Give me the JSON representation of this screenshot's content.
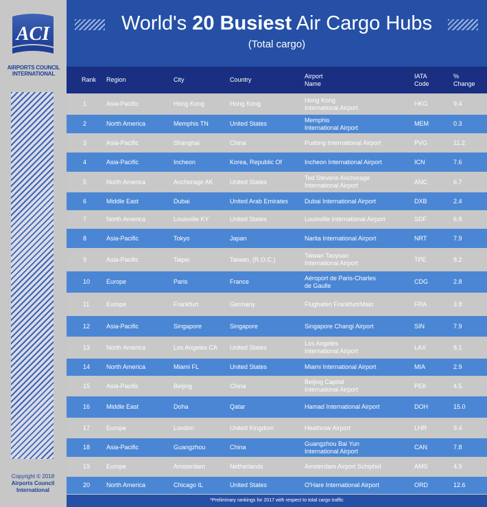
{
  "sidebar": {
    "logo_text": "ACI",
    "org_line1": "AIRPORTS COUNCIL",
    "org_line2": "INTERNATIONAL",
    "copyright_line1": "Copyright © 2018",
    "copyright_line2": "Airports Council",
    "copyright_line3": "International"
  },
  "header": {
    "title_pre": "World's ",
    "title_bold": "20 Busiest",
    "title_post": " Air Cargo Hubs",
    "subtitle": "(Total cargo)"
  },
  "columns": {
    "rank": "Rank",
    "region": "Region",
    "city": "City",
    "country": "Country",
    "airport_l1": "Airport",
    "airport_l2": "Name",
    "iata_l1": "IATA",
    "iata_l2": "Code",
    "change_l1": "%",
    "change_l2": "Change"
  },
  "rows": [
    {
      "rank": "1",
      "region": "Asia-Pacific",
      "city": "Hong Kong",
      "country": "Hong Kong",
      "airport_l1": "Hong Kong",
      "airport_l2": "International Airport",
      "iata": "HKG",
      "change": "9.4"
    },
    {
      "rank": "2",
      "region": "North America",
      "city": "Memphis TN",
      "country": "United States",
      "airport_l1": "Memphis",
      "airport_l2": "International Airport",
      "iata": "MEM",
      "change": "0.3"
    },
    {
      "rank": "3",
      "region": "Asia-Pacific",
      "city": "Shanghai",
      "country": "China",
      "airport_l1": "Pudong International Airport",
      "airport_l2": "",
      "iata": "PVG",
      "change": "11.2"
    },
    {
      "rank": "4",
      "region": "Asia-Pacific",
      "city": "Incheon",
      "country": "Korea, Republic Of",
      "airport_l1": "Incheon International Airport",
      "airport_l2": "",
      "iata": "ICN",
      "change": "7.6"
    },
    {
      "rank": "5",
      "region": "North America",
      "city": "Anchorage AK",
      "country": "United States",
      "airport_l1": "Ted Stevens Anchorage",
      "airport_l2": "International Airport",
      "iata": "ANC",
      "change": "6.7"
    },
    {
      "rank": "6",
      "region": "Middle East",
      "city": "Dubai",
      "country": "United Arab Emirates",
      "airport_l1": "Dubai International Airport",
      "airport_l2": "",
      "iata": "DXB",
      "change": "2.4"
    },
    {
      "rank": "7",
      "region": "North America",
      "city": "Louisville KY",
      "country": "United States",
      "airport_l1": "Louisville International Airport",
      "airport_l2": "",
      "iata": "SDF",
      "change": "6.8"
    },
    {
      "rank": "8",
      "region": "Asia-Pacific",
      "city": "Tokyo",
      "country": "Japan",
      "airport_l1": "Narita International Airport",
      "airport_l2": "",
      "iata": "NRT",
      "change": "7.9"
    },
    {
      "rank": "9",
      "region": "Asia-Pacific",
      "city": "Taipei",
      "country": "Taiwan, (R.O.C.)",
      "airport_l1": "Taiwan Taoyuan",
      "airport_l2": "International Airport",
      "iata": "TPE",
      "change": "8.2"
    },
    {
      "rank": "10",
      "region": "Europe",
      "city": "Paris",
      "country": "France",
      "airport_l1": "Aéroport de Paris-Charles",
      "airport_l2": "de Gaulle",
      "iata": "CDG",
      "change": "2.8"
    },
    {
      "rank": "11",
      "region": "Europe",
      "city": "Frankfurt",
      "country": "Germany",
      "airport_l1": "Flughafen Frankfurt/Main",
      "airport_l2": "",
      "iata": "FRA",
      "change": "3.8"
    },
    {
      "rank": "12",
      "region": "Asia-Pacific",
      "city": "Singapore",
      "country": "Singapore",
      "airport_l1": "Singapore Changi Airport",
      "airport_l2": "",
      "iata": "SIN",
      "change": "7.9"
    },
    {
      "rank": "13",
      "region": "North America",
      "city": "Los Angeles CA",
      "country": "United States",
      "airport_l1": "Los Angeles",
      "airport_l2": "International Airport",
      "iata": "LAX",
      "change": "8.1"
    },
    {
      "rank": "14",
      "region": "North America",
      "city": "Miami FL",
      "country": "United States",
      "airport_l1": "Miami International Airport",
      "airport_l2": "",
      "iata": "MIA",
      "change": "2.9"
    },
    {
      "rank": "15",
      "region": "Asia-Pacific",
      "city": "Beijing",
      "country": "China",
      "airport_l1": "Beijing Capital",
      "airport_l2": "International Airport",
      "iata": "PEK",
      "change": "4.5"
    },
    {
      "rank": "16",
      "region": "Middle East",
      "city": "Doha",
      "country": "Qatar",
      "airport_l1": "Hamad International Airport",
      "airport_l2": "",
      "iata": "DOH",
      "change": "15.0"
    },
    {
      "rank": "17",
      "region": "Europe",
      "city": "London",
      "country": "United Kingdom",
      "airport_l1": "Heathrow Airport",
      "airport_l2": "",
      "iata": "LHR",
      "change": "9.4"
    },
    {
      "rank": "18",
      "region": "Asia-Pacific",
      "city": "Guangzhou",
      "country": "China",
      "airport_l1": "Guangzhou Bai Yun",
      "airport_l2": "International Airport",
      "iata": "CAN",
      "change": "7.8"
    },
    {
      "rank": "19",
      "region": "Europe",
      "city": "Amsterdam",
      "country": "Netherlands",
      "airport_l1": "Amsterdam Airport Schiphol",
      "airport_l2": "",
      "iata": "AMS",
      "change": "4.9"
    },
    {
      "rank": "20",
      "region": "North America",
      "city": "Chicago IL",
      "country": "United States",
      "airport_l1": "O'Hare International Airport",
      "airport_l2": "",
      "iata": "ORD",
      "change": "12.6"
    }
  ],
  "footer_note": "*Preliminary rankings for 2017 with respect to total cargo traffic",
  "colors": {
    "header_blue": "#2550a6",
    "table_head": "#1a2f82",
    "row_blue": "#4a86d4",
    "row_gray": "#c8c8c8"
  }
}
